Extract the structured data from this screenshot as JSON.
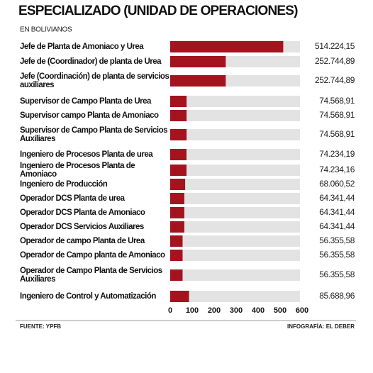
{
  "chart_data": {
    "type": "bar",
    "orientation": "horizontal",
    "title": "ESPECIALIZADO (UNIDAD DE OPERACIONES)",
    "subtitle": "EN BOLIVIANOS",
    "categories": [
      "Jefe de Planta de Amoniaco y Urea",
      "Jefe de (Coordinador) de planta de Urea",
      "Jefe (Coordinación) de planta de servicios auxiliares",
      "Supervisor de Campo Planta de Urea",
      "Supervisor campo Planta de Amoniaco",
      "Supervisor de Campo Planta de Servicios Auxiliares",
      "Ingeniero de Procesos Planta de urea",
      "Ingeniero de Procesos Planta de Amoniaco",
      "Ingeniero de Producción",
      "Operador DCS Planta de urea",
      "Operador DCS Planta de Amoniaco",
      "Operador DCS Servicios Auxiliares",
      "Operador de campo Planta de Urea",
      "Operador de Campo planta de Amoniaco",
      "Operador de Campo Planta de Servicios Auxiliares",
      "Ingeniero de Control y Automatización"
    ],
    "values": [
      514.22415,
      252.74489,
      252.74489,
      74.56891,
      74.56891,
      74.56891,
      74.23419,
      74.23416,
      68.06052,
      64.34144,
      64.34144,
      64.34144,
      56.35558,
      56.35558,
      56.35558,
      85.68896
    ],
    "value_labels": [
      "514.224,15",
      "252.744,89",
      "252.744,89",
      "74.568,91",
      "74.568,91",
      "74.568,91",
      "74.234,19",
      "74.234,16",
      "68.060,52",
      "64.341,44",
      "64.341,44",
      "64.341,44",
      "56.355,58",
      "56.355,58",
      "56.355,58",
      "85.688,96"
    ],
    "color": "#a3141f",
    "background_color": "#e3e3e3",
    "xlim": [
      0,
      600
    ],
    "xticks": [
      0,
      100,
      200,
      300,
      400,
      500,
      600
    ],
    "source": "FUENTE: YPFB",
    "credit": "INFOGRAFÍA: EL DEBER"
  }
}
